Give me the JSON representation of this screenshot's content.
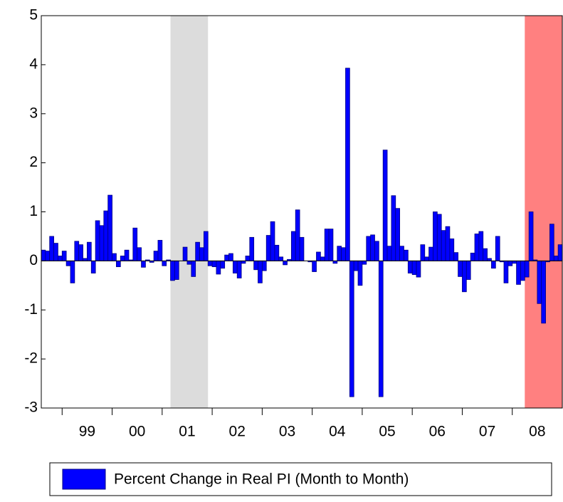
{
  "chart_data": {
    "type": "bar",
    "series": [
      {
        "name": "Percent Change in Real PI (Month to Month)",
        "color": "#0000ff",
        "values": [
          0.22,
          0.2,
          0.5,
          0.36,
          0.1,
          0.2,
          -0.1,
          -0.45,
          0.4,
          0.33,
          0.05,
          0.38,
          -0.25,
          0.82,
          0.72,
          1.02,
          1.34,
          0.15,
          -0.12,
          0.1,
          0.22,
          0.02,
          0.67,
          0.27,
          -0.13,
          0.02,
          -0.03,
          0.2,
          0.42,
          -0.1,
          0.02,
          -0.4,
          -0.38,
          0.0,
          0.28,
          -0.07,
          -0.32,
          0.38,
          0.27,
          0.6,
          -0.1,
          -0.12,
          -0.27,
          -0.15,
          0.12,
          0.15,
          -0.25,
          -0.35,
          -0.05,
          0.1,
          0.48,
          -0.18,
          -0.45,
          -0.2,
          0.52,
          0.8,
          0.32,
          0.08,
          -0.08,
          0.03,
          0.6,
          1.04,
          0.48,
          0.0,
          -0.02,
          -0.22,
          0.18,
          0.08,
          0.65,
          0.65,
          -0.05,
          0.3,
          0.27,
          3.93,
          -2.77,
          -0.2,
          -0.5,
          -0.07,
          0.5,
          0.53,
          0.4,
          -2.77,
          2.26,
          0.3,
          1.33,
          1.07,
          0.3,
          0.22,
          -0.25,
          -0.28,
          -0.33,
          0.33,
          0.08,
          0.28,
          1.0,
          0.95,
          0.62,
          0.7,
          0.45,
          0.17,
          -0.32,
          -0.63,
          -0.38,
          0.16,
          0.55,
          0.6,
          0.25,
          0.05,
          -0.15,
          0.5,
          -0.02,
          -0.45,
          -0.1,
          -0.05,
          -0.48,
          -0.4,
          -0.33,
          1.0,
          0.02,
          -0.87,
          -1.27,
          -0.02,
          0.75,
          0.1,
          0.33
        ]
      }
    ],
    "x": [
      "1998-08",
      "1998-09",
      "1998-10",
      "1998-11",
      "1998-12",
      "1999-01",
      "1999-02",
      "1999-03",
      "1999-04",
      "1999-05",
      "1999-06",
      "1999-07",
      "1999-08",
      "1999-09",
      "1999-10",
      "1999-11",
      "1999-12",
      "2000-01",
      "2000-02",
      "2000-03",
      "2000-04",
      "2000-05",
      "2000-06",
      "2000-07",
      "2000-08",
      "2000-09",
      "2000-10",
      "2000-11",
      "2000-12",
      "2001-01",
      "2001-02",
      "2001-03",
      "2001-04",
      "2001-05",
      "2001-06",
      "2001-07",
      "2001-08",
      "2001-09",
      "2001-10",
      "2001-11",
      "2001-12",
      "2002-01",
      "2002-02",
      "2002-03",
      "2002-04",
      "2002-05",
      "2002-06",
      "2002-07",
      "2002-08",
      "2002-09",
      "2002-10",
      "2002-11",
      "2002-12",
      "2003-01",
      "2003-02",
      "2003-03",
      "2003-04",
      "2003-05",
      "2003-06",
      "2003-07",
      "2003-08",
      "2003-09",
      "2003-10",
      "2003-11",
      "2003-12",
      "2004-01",
      "2004-02",
      "2004-03",
      "2004-04",
      "2004-05",
      "2004-06",
      "2004-07",
      "2004-08",
      "2004-09",
      "2004-10",
      "2004-11",
      "2004-12",
      "2005-01",
      "2005-02",
      "2005-03",
      "2005-04",
      "2005-05",
      "2005-06",
      "2005-07",
      "2005-08",
      "2005-09",
      "2005-10",
      "2005-11",
      "2005-12",
      "2006-01",
      "2006-02",
      "2006-03",
      "2006-04",
      "2006-05",
      "2006-06",
      "2006-07",
      "2006-08",
      "2006-09",
      "2006-10",
      "2006-11",
      "2006-12",
      "2007-01",
      "2007-02",
      "2007-03",
      "2007-04",
      "2007-05",
      "2007-06",
      "2007-07",
      "2007-08",
      "2007-09",
      "2007-10",
      "2007-11",
      "2007-12",
      "2008-01",
      "2008-02",
      "2008-03",
      "2008-04",
      "2008-05",
      "2008-06",
      "2008-07",
      "2008-08",
      "2008-09",
      "2008-10",
      "2008-11",
      "2008-12"
    ],
    "xlim": [
      "1998-08",
      "2009-01"
    ],
    "xticks": [
      {
        "value": "1999-01",
        "label": "99"
      },
      {
        "value": "2000-01",
        "label": "00"
      },
      {
        "value": "2001-01",
        "label": "01"
      },
      {
        "value": "2002-01",
        "label": "02"
      },
      {
        "value": "2003-01",
        "label": "03"
      },
      {
        "value": "2004-01",
        "label": "04"
      },
      {
        "value": "2005-01",
        "label": "05"
      },
      {
        "value": "2006-01",
        "label": "06"
      },
      {
        "value": "2007-01",
        "label": "07"
      },
      {
        "value": "2008-01",
        "label": "08"
      }
    ],
    "ylim": [
      -3,
      5
    ],
    "yticks": [
      -3,
      -2,
      -1,
      0,
      1,
      2,
      3,
      4,
      5
    ],
    "shaded_regions": [
      {
        "start": "2001-03",
        "end": "2001-11",
        "color": "#dcdcdc"
      },
      {
        "start": "2008-04",
        "end": "2008-12",
        "color": "#ff8080"
      }
    ]
  }
}
